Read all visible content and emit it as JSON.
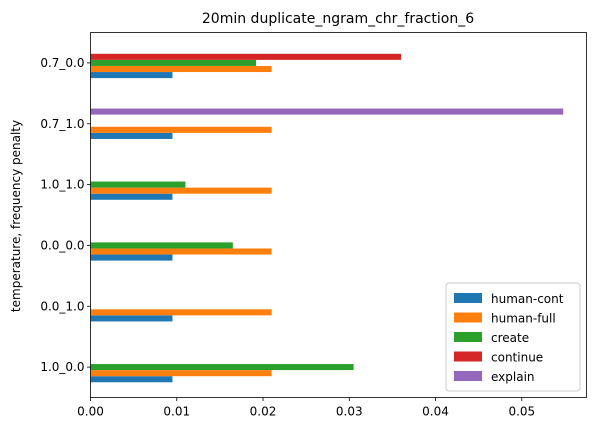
{
  "chart_data": {
    "type": "bar",
    "orientation": "horizontal",
    "title": "20min duplicate_ngram_chr_fraction_6",
    "xlabel": "",
    "ylabel": "temperature, frequency penalty",
    "xlim": [
      0,
      0.0575
    ],
    "x_ticks": [
      "0.00",
      "0.01",
      "0.02",
      "0.03",
      "0.04",
      "0.05"
    ],
    "x_tick_values": [
      0,
      0.01,
      0.02,
      0.03,
      0.04,
      0.05
    ],
    "categories": [
      "1.0_0.0",
      "0.0_1.0",
      "0.0_0.0",
      "1.0_1.0",
      "0.7_1.0",
      "0.7_0.0"
    ],
    "series": [
      {
        "name": "human-cont",
        "color": "#1f77b4",
        "values": [
          0.0095,
          0.0095,
          0.0095,
          0.0095,
          0.0095,
          0.0095
        ]
      },
      {
        "name": "human-full",
        "color": "#ff7f0e",
        "values": [
          0.021,
          0.021,
          0.021,
          0.021,
          0.021,
          0.021
        ]
      },
      {
        "name": "create",
        "color": "#2ca02c",
        "values": [
          0.0305,
          0,
          0.0165,
          0.011,
          0,
          0.0192
        ]
      },
      {
        "name": "continue",
        "color": "#d62728",
        "values": [
          0,
          0,
          0,
          0,
          0,
          0.036
        ]
      },
      {
        "name": "explain",
        "color": "#9467bd",
        "values": [
          0,
          0,
          0,
          0,
          0.0548,
          0
        ]
      }
    ],
    "legend_position": "lower-right",
    "grid": false
  }
}
